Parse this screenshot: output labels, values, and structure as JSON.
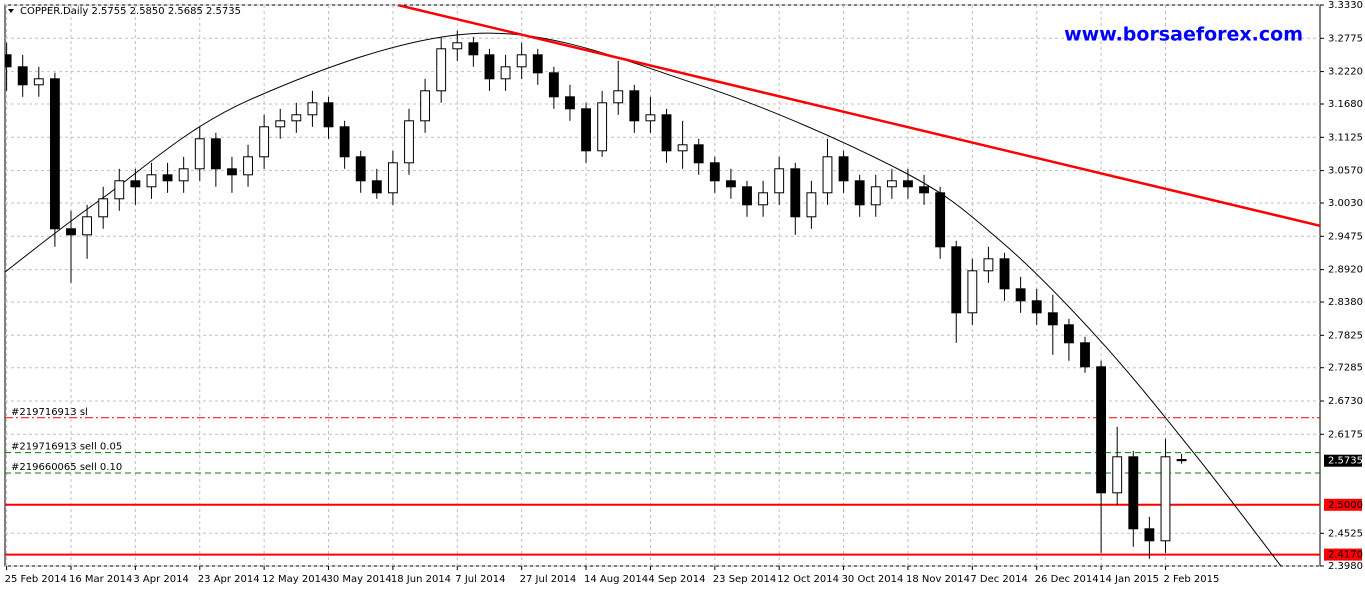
{
  "chart_data": {
    "type": "candlestick",
    "title": "COPPER.Daily  2.5755 2.5850 2.5685 2.5735",
    "watermark": "www.borsaeforex.com",
    "categories": [
      "25 Feb 2014",
      null,
      null,
      null,
      "16 Mar 2014",
      null,
      null,
      null,
      "3 Apr 2014",
      null,
      null,
      null,
      "23 Apr 2014",
      null,
      null,
      null,
      "12 May 2014",
      null,
      null,
      null,
      "30 May 2014",
      null,
      null,
      null,
      "18 Jun 2014",
      null,
      null,
      null,
      "7 Jul 2014",
      null,
      null,
      null,
      "27 Jul 2014",
      null,
      null,
      null,
      "14 Aug 2014",
      null,
      null,
      null,
      "4 Sep 2014",
      null,
      null,
      null,
      "23 Sep 2014",
      null,
      null,
      null,
      "12 Oct 2014",
      null,
      null,
      null,
      "30 Oct 2014",
      null,
      null,
      null,
      "18 Nov 2014",
      null,
      null,
      null,
      "7 Dec 2014",
      null,
      null,
      null,
      "26 Dec 2014",
      null,
      null,
      null,
      "14 Jan 2015",
      null,
      null,
      null,
      "2 Feb 2015",
      null
    ],
    "open": [
      3.25,
      3.23,
      3.2,
      3.21,
      2.96,
      2.95,
      2.98,
      3.01,
      3.04,
      3.03,
      3.05,
      3.04,
      3.06,
      3.11,
      3.06,
      3.05,
      3.08,
      3.13,
      3.14,
      3.15,
      3.17,
      3.13,
      3.08,
      3.04,
      3.02,
      3.07,
      3.14,
      3.19,
      3.26,
      3.27,
      3.25,
      3.21,
      3.23,
      3.25,
      3.22,
      3.18,
      3.16,
      3.09,
      3.17,
      3.19,
      3.14,
      3.15,
      3.09,
      3.1,
      3.07,
      3.04,
      3.03,
      3.0,
      3.02,
      3.06,
      2.98,
      3.02,
      3.08,
      3.04,
      3.0,
      3.03,
      3.04,
      3.03,
      3.02,
      2.93,
      2.82,
      2.89,
      2.91,
      2.86,
      2.84,
      2.82,
      2.8,
      2.77,
      2.73,
      2.52,
      2.58,
      2.46,
      2.44,
      2.5755
    ],
    "high": [
      3.27,
      3.25,
      3.23,
      3.22,
      2.99,
      3.0,
      3.03,
      3.06,
      3.06,
      3.07,
      3.07,
      3.08,
      3.13,
      3.12,
      3.08,
      3.1,
      3.15,
      3.16,
      3.17,
      3.19,
      3.18,
      3.14,
      3.09,
      3.06,
      3.09,
      3.16,
      3.21,
      3.28,
      3.29,
      3.28,
      3.26,
      3.25,
      3.27,
      3.26,
      3.23,
      3.2,
      3.17,
      3.19,
      3.24,
      3.2,
      3.18,
      3.16,
      3.14,
      3.11,
      3.08,
      3.06,
      3.04,
      3.04,
      3.08,
      3.07,
      3.04,
      3.11,
      3.09,
      3.05,
      3.05,
      3.06,
      3.06,
      3.05,
      3.03,
      2.94,
      2.91,
      2.93,
      2.92,
      2.88,
      2.86,
      2.85,
      2.81,
      2.78,
      2.74,
      2.63,
      2.59,
      2.48,
      2.61,
      2.585
    ],
    "low": [
      3.19,
      3.18,
      3.18,
      2.93,
      2.87,
      2.91,
      2.96,
      2.99,
      3.0,
      3.01,
      3.02,
      3.02,
      3.04,
      3.03,
      3.02,
      3.03,
      3.06,
      3.11,
      3.12,
      3.13,
      3.11,
      3.06,
      3.02,
      3.01,
      3.0,
      3.05,
      3.12,
      3.17,
      3.24,
      3.23,
      3.19,
      3.19,
      3.21,
      3.2,
      3.16,
      3.14,
      3.07,
      3.08,
      3.15,
      3.12,
      3.12,
      3.07,
      3.06,
      3.05,
      3.02,
      3.01,
      2.98,
      2.98,
      3.0,
      2.95,
      2.96,
      3.0,
      3.02,
      2.98,
      2.98,
      3.01,
      3.01,
      3.0,
      2.91,
      2.77,
      2.8,
      2.87,
      2.84,
      2.82,
      2.8,
      2.75,
      2.74,
      2.72,
      2.42,
      2.5,
      2.43,
      2.41,
      2.42,
      2.5685
    ],
    "close": [
      3.23,
      3.2,
      3.21,
      2.96,
      2.95,
      2.98,
      3.01,
      3.04,
      3.03,
      3.05,
      3.04,
      3.06,
      3.11,
      3.06,
      3.05,
      3.08,
      3.13,
      3.14,
      3.15,
      3.17,
      3.13,
      3.08,
      3.04,
      3.02,
      3.07,
      3.14,
      3.19,
      3.26,
      3.27,
      3.25,
      3.21,
      3.23,
      3.25,
      3.22,
      3.18,
      3.16,
      3.09,
      3.17,
      3.19,
      3.14,
      3.15,
      3.09,
      3.1,
      3.07,
      3.04,
      3.03,
      3.0,
      3.02,
      3.06,
      2.98,
      3.02,
      3.08,
      3.04,
      3.0,
      3.03,
      3.04,
      3.03,
      3.02,
      2.93,
      2.82,
      2.89,
      2.91,
      2.86,
      2.84,
      2.82,
      2.8,
      2.77,
      2.73,
      2.52,
      2.58,
      2.46,
      2.44,
      2.58,
      2.5735
    ],
    "up_color": "#ffffff",
    "down_color": "#000000",
    "xlim": [
      -0.1,
      81.6
    ],
    "ylim": [
      2.398,
      3.333
    ],
    "yticks": [
      {
        "value": 3.333,
        "label": "3.3330"
      },
      {
        "value": 3.2775,
        "label": "3.2775"
      },
      {
        "value": 3.222,
        "label": "3.2220"
      },
      {
        "value": 3.168,
        "label": "3.1680"
      },
      {
        "value": 3.1125,
        "label": "3.1125"
      },
      {
        "value": 3.057,
        "label": "3.0570"
      },
      {
        "value": 3.003,
        "label": "3.0030"
      },
      {
        "value": 2.9475,
        "label": "2.9475"
      },
      {
        "value": 2.892,
        "label": "2.8920"
      },
      {
        "value": 2.838,
        "label": "2.8380"
      },
      {
        "value": 2.7825,
        "label": "2.7825"
      },
      {
        "value": 2.7285,
        "label": "2.7285"
      },
      {
        "value": 2.673,
        "label": "2.6730"
      },
      {
        "value": 2.6175,
        "label": "2.6175"
      },
      {
        "value": 2.4525,
        "label": "2.4525"
      },
      {
        "value": 2.398,
        "label": "2.3980"
      }
    ],
    "grid": true,
    "levels": [
      {
        "value": 2.5,
        "label": "2.5000",
        "color": "#ff0000"
      },
      {
        "value": 2.417,
        "label": "2.4170",
        "color": "#ff0000"
      }
    ],
    "orders": [
      {
        "value": 2.645,
        "name": "#219716913 sl",
        "color": "#ff0000"
      },
      {
        "value": 2.587,
        "name": "#219716913 sell 0.05",
        "color": "#008000"
      },
      {
        "value": 2.553,
        "name": "#219660065 sell 0.10",
        "color": "#008000"
      }
    ],
    "last_price": {
      "value": 2.5735,
      "label": "2.5735"
    },
    "trendline": {
      "color": "#ff0000",
      "x": [
        24.3,
        81.6
      ],
      "y": [
        3.333,
        2.965
      ]
    },
    "arc": {
      "color": "#000000",
      "x": [
        -0.1,
        5.8,
        15.1,
        29.4,
        43.0,
        55.5,
        61.7,
        67.9,
        74.1,
        80.3
      ],
      "y": [
        2.888,
        3.008,
        3.175,
        3.286,
        3.2,
        3.058,
        2.941,
        2.775,
        2.575,
        2.358
      ]
    }
  }
}
